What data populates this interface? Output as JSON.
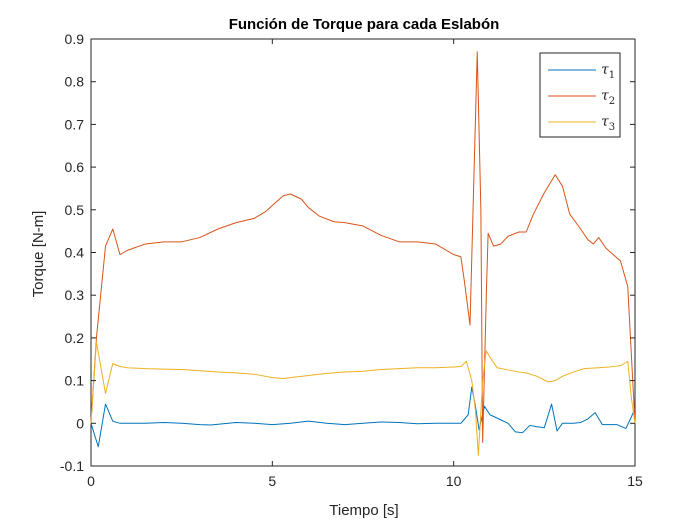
{
  "chart_data": {
    "type": "line",
    "title": "Función de Torque para cada Eslabón",
    "xlabel": "Tiempo [s]",
    "ylabel": "Torque [N-m]",
    "xlim": [
      0,
      15
    ],
    "ylim": [
      -0.1,
      0.9
    ],
    "xticks": [
      0,
      5,
      10,
      15
    ],
    "yticks": [
      -0.1,
      0,
      0.1,
      0.2,
      0.3,
      0.4,
      0.5,
      0.6,
      0.7,
      0.8,
      0.9
    ],
    "xtick_labels": [
      "0",
      "5",
      "10",
      "15"
    ],
    "ytick_labels": [
      "-0.1",
      "0",
      "0.1",
      "0.2",
      "0.3",
      "0.4",
      "0.5",
      "0.6",
      "0.7",
      "0.8",
      "0.9"
    ],
    "grid": false,
    "legend_position": "top-right",
    "series": [
      {
        "name": "τ1",
        "legend_symbol": "τ",
        "legend_subscript": "1",
        "color": "#0072BD",
        "points": [
          [
            0,
            0
          ],
          [
            0.2,
            -0.055
          ],
          [
            0.4,
            0.045
          ],
          [
            0.6,
            0.005
          ],
          [
            0.8,
            0
          ],
          [
            1.5,
            0.0
          ],
          [
            2.0,
            0.002
          ],
          [
            2.5,
            0.0
          ],
          [
            3.0,
            -0.003
          ],
          [
            3.3,
            -0.004
          ],
          [
            4.0,
            0.002
          ],
          [
            4.5,
            0.0
          ],
          [
            5.0,
            -0.003
          ],
          [
            5.5,
            0.0
          ],
          [
            6.0,
            0.005
          ],
          [
            6.5,
            0.0
          ],
          [
            7.0,
            -0.003
          ],
          [
            7.5,
            0.0
          ],
          [
            8.0,
            0.003
          ],
          [
            8.5,
            0.002
          ],
          [
            9.0,
            -0.001
          ],
          [
            9.5,
            0.0
          ],
          [
            10.0,
            0.0
          ],
          [
            10.2,
            0.0
          ],
          [
            10.4,
            0.02
          ],
          [
            10.5,
            0.085
          ],
          [
            10.6,
            0.04
          ],
          [
            10.7,
            -0.015
          ],
          [
            10.85,
            0.04
          ],
          [
            11.0,
            0.02
          ],
          [
            11.3,
            0.008
          ],
          [
            11.5,
            0.0
          ],
          [
            11.7,
            -0.02
          ],
          [
            11.9,
            -0.022
          ],
          [
            12.1,
            -0.005
          ],
          [
            12.3,
            -0.008
          ],
          [
            12.5,
            -0.01
          ],
          [
            12.7,
            0.045
          ],
          [
            12.85,
            -0.018
          ],
          [
            13.0,
            0.0
          ],
          [
            13.3,
            0.0
          ],
          [
            13.5,
            0.002
          ],
          [
            13.7,
            0.01
          ],
          [
            13.9,
            0.025
          ],
          [
            14.1,
            -0.003
          ],
          [
            14.5,
            -0.003
          ],
          [
            14.75,
            -0.012
          ],
          [
            14.9,
            0.015
          ],
          [
            15.0,
            0.035
          ]
        ]
      },
      {
        "name": "τ2",
        "legend_symbol": "τ",
        "legend_subscript": "2",
        "color": "#D95319",
        "points": [
          [
            0,
            0
          ],
          [
            0.15,
            0.2
          ],
          [
            0.4,
            0.415
          ],
          [
            0.6,
            0.455
          ],
          [
            0.8,
            0.395
          ],
          [
            1.0,
            0.405
          ],
          [
            1.5,
            0.42
          ],
          [
            2.0,
            0.425
          ],
          [
            2.5,
            0.425
          ],
          [
            3.0,
            0.435
          ],
          [
            3.5,
            0.455
          ],
          [
            4.0,
            0.47
          ],
          [
            4.5,
            0.48
          ],
          [
            4.8,
            0.495
          ],
          [
            5.0,
            0.51
          ],
          [
            5.3,
            0.533
          ],
          [
            5.5,
            0.537
          ],
          [
            5.8,
            0.525
          ],
          [
            6.0,
            0.505
          ],
          [
            6.3,
            0.485
          ],
          [
            6.7,
            0.472
          ],
          [
            7.0,
            0.47
          ],
          [
            7.5,
            0.462
          ],
          [
            8.0,
            0.44
          ],
          [
            8.5,
            0.425
          ],
          [
            9.0,
            0.425
          ],
          [
            9.5,
            0.42
          ],
          [
            10.0,
            0.395
          ],
          [
            10.2,
            0.39
          ],
          [
            10.3,
            0.33
          ],
          [
            10.45,
            0.23
          ],
          [
            10.55,
            0.55
          ],
          [
            10.65,
            0.87
          ],
          [
            10.75,
            0.5
          ],
          [
            10.8,
            -0.045
          ],
          [
            10.9,
            0.3
          ],
          [
            10.95,
            0.445
          ],
          [
            11.1,
            0.415
          ],
          [
            11.3,
            0.42
          ],
          [
            11.5,
            0.438
          ],
          [
            11.8,
            0.448
          ],
          [
            12.0,
            0.448
          ],
          [
            12.2,
            0.49
          ],
          [
            12.5,
            0.54
          ],
          [
            12.8,
            0.582
          ],
          [
            13.0,
            0.555
          ],
          [
            13.2,
            0.49
          ],
          [
            13.5,
            0.455
          ],
          [
            13.7,
            0.43
          ],
          [
            13.85,
            0.42
          ],
          [
            14.0,
            0.435
          ],
          [
            14.2,
            0.41
          ],
          [
            14.4,
            0.395
          ],
          [
            14.6,
            0.38
          ],
          [
            14.8,
            0.32
          ],
          [
            15.0,
            0.0
          ]
        ]
      },
      {
        "name": "τ3",
        "legend_symbol": "τ",
        "legend_subscript": "3",
        "color": "#EDB120",
        "points": [
          [
            0,
            0
          ],
          [
            0.15,
            0.19
          ],
          [
            0.4,
            0.07
          ],
          [
            0.6,
            0.14
          ],
          [
            0.8,
            0.133
          ],
          [
            1.0,
            0.13
          ],
          [
            1.5,
            0.128
          ],
          [
            2.0,
            0.127
          ],
          [
            2.5,
            0.126
          ],
          [
            3.0,
            0.123
          ],
          [
            3.5,
            0.12
          ],
          [
            4.0,
            0.118
          ],
          [
            4.5,
            0.115
          ],
          [
            5.0,
            0.107
          ],
          [
            5.3,
            0.105
          ],
          [
            5.6,
            0.108
          ],
          [
            6.0,
            0.112
          ],
          [
            6.5,
            0.117
          ],
          [
            7.0,
            0.12
          ],
          [
            7.5,
            0.122
          ],
          [
            8.0,
            0.126
          ],
          [
            8.5,
            0.128
          ],
          [
            9.0,
            0.13
          ],
          [
            9.5,
            0.13
          ],
          [
            10.0,
            0.132
          ],
          [
            10.2,
            0.133
          ],
          [
            10.35,
            0.145
          ],
          [
            10.5,
            0.1
          ],
          [
            10.6,
            0.03
          ],
          [
            10.68,
            -0.075
          ],
          [
            10.8,
            0.1
          ],
          [
            10.9,
            0.17
          ],
          [
            11.0,
            0.155
          ],
          [
            11.2,
            0.13
          ],
          [
            11.5,
            0.125
          ],
          [
            11.8,
            0.12
          ],
          [
            12.0,
            0.118
          ],
          [
            12.3,
            0.11
          ],
          [
            12.6,
            0.097
          ],
          [
            12.8,
            0.1
          ],
          [
            13.0,
            0.11
          ],
          [
            13.3,
            0.12
          ],
          [
            13.6,
            0.128
          ],
          [
            14.0,
            0.13
          ],
          [
            14.3,
            0.132
          ],
          [
            14.6,
            0.135
          ],
          [
            14.8,
            0.145
          ],
          [
            14.9,
            0.06
          ],
          [
            15.0,
            0.0
          ]
        ]
      }
    ]
  }
}
